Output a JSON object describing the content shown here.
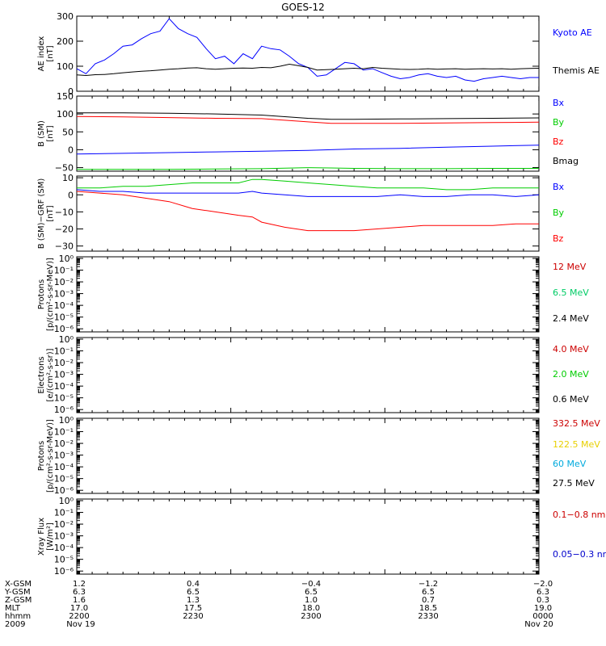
{
  "title": "GOES-12",
  "chart_data": [
    {
      "type": "line",
      "ylabel": [
        "AE index",
        "[nT]"
      ],
      "scale": "linear",
      "ylim": [
        0,
        300
      ],
      "yticks": [
        "0",
        "100",
        "200",
        "300"
      ],
      "x": [
        0,
        2,
        4,
        6,
        8,
        10,
        12,
        14,
        16,
        18,
        20,
        22,
        24,
        26,
        28,
        30,
        32,
        34,
        36,
        38,
        40,
        42,
        44,
        46,
        48,
        50,
        52,
        54,
        56,
        58,
        60,
        62,
        64,
        66,
        68,
        70,
        72,
        74,
        76,
        78,
        80,
        82,
        84,
        86,
        88,
        90,
        92,
        94,
        96,
        98,
        100
      ],
      "series": [
        {
          "name": "Kyoto AE",
          "color": "#0000ff",
          "values": [
            90,
            70,
            110,
            125,
            150,
            180,
            185,
            210,
            230,
            240,
            290,
            250,
            230,
            215,
            170,
            130,
            140,
            110,
            150,
            130,
            180,
            170,
            165,
            140,
            110,
            95,
            60,
            65,
            90,
            115,
            110,
            85,
            90,
            75,
            60,
            50,
            55,
            65,
            70,
            60,
            55,
            60,
            45,
            40,
            50,
            55,
            60,
            55,
            50,
            55,
            55
          ]
        },
        {
          "name": "Themis AE",
          "color": "#000000",
          "values": [
            65,
            63,
            66,
            67,
            70,
            74,
            77,
            80,
            82,
            85,
            88,
            90,
            93,
            94,
            90,
            88,
            90,
            92,
            93,
            92,
            95,
            94,
            100,
            108,
            102,
            95,
            85,
            86,
            88,
            90,
            92,
            90,
            95,
            92,
            90,
            88,
            87,
            88,
            90,
            88,
            89,
            90,
            88,
            89,
            90,
            89,
            90,
            88,
            90,
            91,
            92
          ]
        }
      ]
    },
    {
      "type": "line",
      "ylabel": [
        "B (SM)",
        "[nT]"
      ],
      "scale": "linear",
      "ylim": [
        -60,
        150
      ],
      "yticks": [
        "−50",
        "0",
        "50",
        "100",
        "150"
      ],
      "x": [
        0,
        10,
        20,
        30,
        40,
        50,
        55,
        60,
        70,
        80,
        90,
        100
      ],
      "series": [
        {
          "name": "Bx",
          "color": "#0000ff",
          "values": [
            -12,
            -10,
            -8,
            -6,
            -4,
            -2,
            0,
            2,
            4,
            7,
            10,
            13
          ]
        },
        {
          "name": "By",
          "color": "#00cc00",
          "values": [
            -55,
            -55,
            -55,
            -54,
            -53,
            -50,
            -51,
            -52,
            -53,
            -53,
            -52,
            -52
          ]
        },
        {
          "name": "Bz",
          "color": "#ff0000",
          "values": [
            93,
            92,
            90,
            88,
            87,
            78,
            74,
            74,
            74,
            75,
            76,
            77
          ]
        },
        {
          "name": "Bmag",
          "color": "#000000",
          "values": [
            103,
            103,
            102,
            100,
            97,
            88,
            85,
            85,
            86,
            87,
            88,
            89
          ]
        }
      ]
    },
    {
      "type": "line",
      "ylabel": [
        "B (SM)−GRF (SM)",
        "[nT]"
      ],
      "scale": "linear",
      "ylim": [
        -33,
        11
      ],
      "yticks": [
        "−30",
        "−20",
        "−10",
        "0",
        "10"
      ],
      "x": [
        0,
        5,
        10,
        15,
        20,
        25,
        30,
        35,
        38,
        40,
        45,
        50,
        55,
        60,
        65,
        70,
        75,
        80,
        85,
        90,
        95,
        100
      ],
      "series": [
        {
          "name": "Bx",
          "color": "#0000ff",
          "values": [
            3,
            2,
            2,
            1,
            1,
            1,
            1,
            1,
            2,
            1,
            0,
            -1,
            -1,
            -1,
            -1,
            0,
            -1,
            -1,
            0,
            0,
            -1,
            0
          ]
        },
        {
          "name": "By",
          "color": "#00cc00",
          "values": [
            4,
            4,
            5,
            5,
            6,
            7,
            7,
            7,
            9,
            9,
            8,
            7,
            6,
            5,
            4,
            4,
            4,
            3,
            3,
            4,
            4,
            4
          ]
        },
        {
          "name": "Bz",
          "color": "#ff0000",
          "values": [
            2,
            1,
            0,
            -2,
            -4,
            -8,
            -10,
            -12,
            -13,
            -16,
            -19,
            -21,
            -21,
            -21,
            -20,
            -19,
            -18,
            -18,
            -18,
            -18,
            -17,
            -17
          ]
        }
      ]
    },
    {
      "type": "line",
      "scale": "log",
      "ylabel": [
        "Protons",
        "[p/(cm²-s-sr-MeV)]"
      ],
      "yticks": [
        "10⁰",
        "10⁻¹",
        "10⁻²",
        "10⁻³",
        "10⁻⁴",
        "10⁻⁵",
        "10⁻⁶"
      ],
      "series": [
        {
          "name": "12 MeV",
          "color": "#cc0000"
        },
        {
          "name": "6.5 MeV",
          "color": "#00cc66"
        },
        {
          "name": "2.4 MeV",
          "color": "#000000"
        }
      ]
    },
    {
      "type": "line",
      "scale": "log",
      "ylabel": [
        "Electrons",
        "[e/(cm²-s-sr)]"
      ],
      "yticks": [
        "10⁰",
        "10⁻¹",
        "10⁻²",
        "10⁻³",
        "10⁻⁴",
        "10⁻⁵",
        "10⁻⁶"
      ],
      "series": [
        {
          "name": "4.0 MeV",
          "color": "#cc0000"
        },
        {
          "name": "2.0 MeV",
          "color": "#00cc00"
        },
        {
          "name": "0.6 MeV",
          "color": "#000000"
        }
      ]
    },
    {
      "type": "line",
      "scale": "log",
      "ylabel": [
        "Protons",
        "[p/(cm²-s-sr-MeV)]"
      ],
      "yticks": [
        "10⁰",
        "10⁻¹",
        "10⁻²",
        "10⁻³",
        "10⁻⁴",
        "10⁻⁵",
        "10⁻⁶"
      ],
      "series": [
        {
          "name": "332.5 MeV",
          "color": "#cc0000"
        },
        {
          "name": "122.5 MeV",
          "color": "#e8d000"
        },
        {
          "name": "60 MeV",
          "color": "#00aadd"
        },
        {
          "name": "27.5 MeV",
          "color": "#000000"
        }
      ]
    },
    {
      "type": "line",
      "scale": "log",
      "ylabel": [
        "Xray Flux",
        "[W/m²]"
      ],
      "yticks": [
        "10⁰",
        "10⁻¹",
        "10⁻²",
        "10⁻³",
        "10⁻⁴",
        "10⁻⁵",
        "10⁻⁶"
      ],
      "series": [
        {
          "name": "0.1−0.8 nm",
          "color": "#cc0000"
        },
        {
          "name": "0.05−0.3 nr",
          "color": "#0000cc"
        }
      ]
    }
  ],
  "bottom_axis": {
    "rows": [
      {
        "label": "X-GSM",
        "values": [
          "1.2",
          "0.4",
          "−0.4",
          "−1.2",
          "−2.0"
        ]
      },
      {
        "label": "Y-GSM",
        "values": [
          "6.3",
          "6.5",
          "6.5",
          "6.5",
          "6.3"
        ]
      },
      {
        "label": "Z-GSM",
        "values": [
          "1.6",
          "1.3",
          "1.0",
          "0.7",
          "0.3"
        ]
      },
      {
        "label": "MLT",
        "values": [
          "17.0",
          "17.5",
          "18.0",
          "18.5",
          "19.0"
        ]
      },
      {
        "label": "hhmm",
        "values": [
          "2200",
          "2230",
          "2300",
          "2330",
          "0000"
        ]
      },
      {
        "label": "2009",
        "values": [
          "Nov 19",
          "",
          "",
          "",
          "Nov 20"
        ]
      }
    ]
  }
}
